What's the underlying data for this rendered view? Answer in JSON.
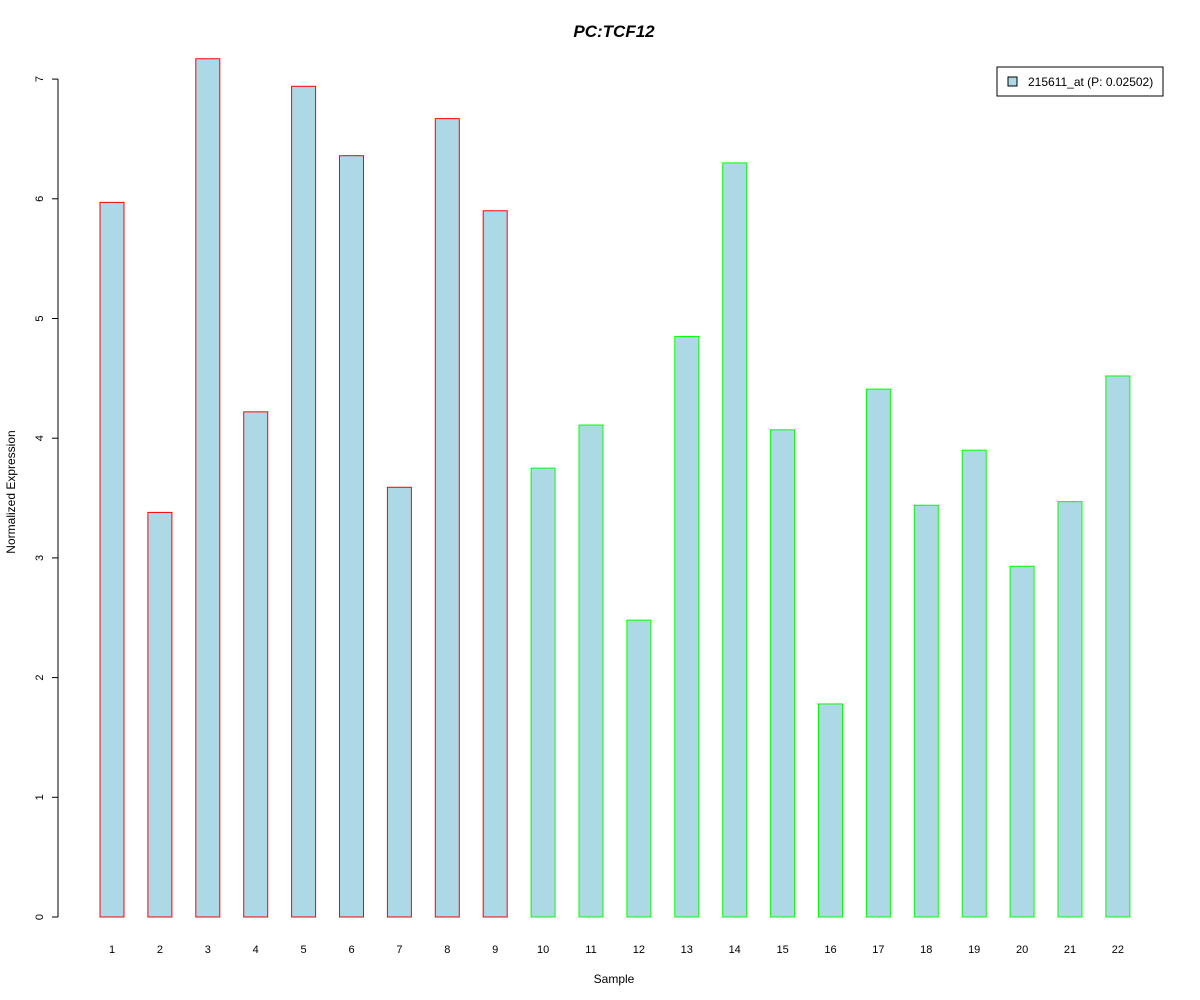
{
  "chart_data": {
    "type": "bar",
    "title": "PC:TCF12",
    "title_color": "#0000ff",
    "xlabel": "Sample",
    "ylabel": "Normalized Expression",
    "categories": [
      "1",
      "2",
      "3",
      "4",
      "5",
      "6",
      "7",
      "8",
      "9",
      "10",
      "11",
      "12",
      "13",
      "14",
      "15",
      "16",
      "17",
      "18",
      "19",
      "20",
      "21",
      "22"
    ],
    "series": [
      {
        "name": "215611_at (P: 0.02502)",
        "fill": "#add8e6",
        "values": [
          5.97,
          3.38,
          7.17,
          4.22,
          6.94,
          6.36,
          3.59,
          6.67,
          5.9,
          3.75,
          4.11,
          2.48,
          4.85,
          6.3,
          4.07,
          1.78,
          4.41,
          3.44,
          3.9,
          2.93,
          3.47,
          4.52
        ]
      }
    ],
    "bar_outline_colors": [
      "#ff0000",
      "#ff0000",
      "#ff0000",
      "#ff0000",
      "#ff0000",
      "#ff0000",
      "#ff0000",
      "#ff0000",
      "#ff0000",
      "#00ff00",
      "#00ff00",
      "#00ff00",
      "#00ff00",
      "#00ff00",
      "#00ff00",
      "#00ff00",
      "#00ff00",
      "#00ff00",
      "#00ff00",
      "#00ff00",
      "#00ff00",
      "#00ff00"
    ],
    "yticks": [
      0,
      1,
      2,
      3,
      4,
      5,
      6,
      7
    ],
    "ylim": [
      0,
      7.35
    ],
    "grid": false,
    "legend_position": "top-right"
  }
}
